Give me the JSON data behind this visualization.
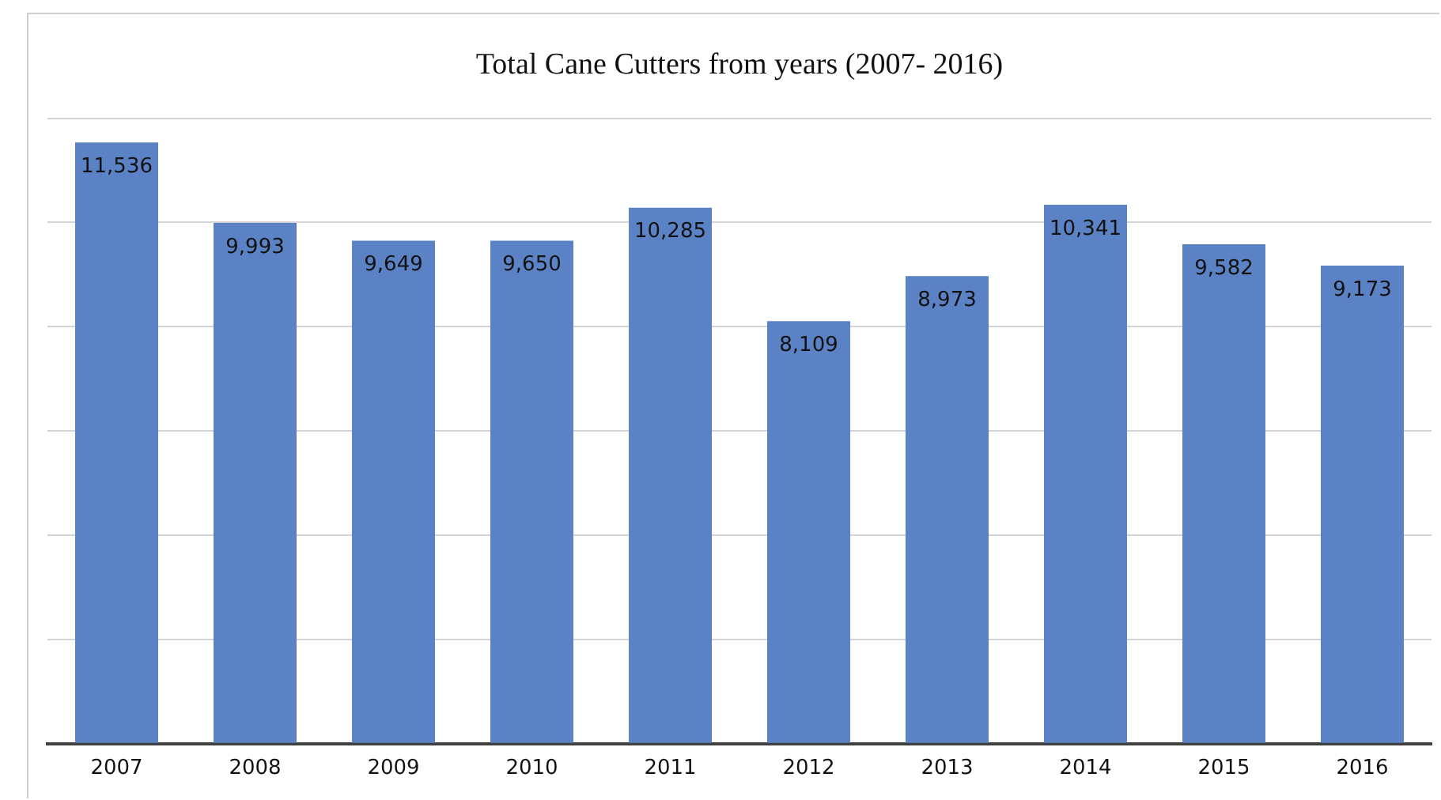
{
  "chart_data": {
    "type": "bar",
    "title": "Total Cane Cutters from years (2007- 2016)",
    "categories": [
      "2007",
      "2008",
      "2009",
      "2010",
      "2011",
      "2012",
      "2013",
      "2014",
      "2015",
      "2016"
    ],
    "values": [
      11536,
      9993,
      9649,
      9650,
      10285,
      8109,
      8973,
      10341,
      9582,
      9173
    ],
    "value_labels": [
      "11,536",
      "9,993",
      "9,649",
      "9,650",
      "10,285",
      "8,109",
      "8,973",
      "10,341",
      "9,582",
      "9,173"
    ],
    "color": "#5b82c4",
    "tick_labels": "x",
    "grid": "y",
    "legend": false
  }
}
